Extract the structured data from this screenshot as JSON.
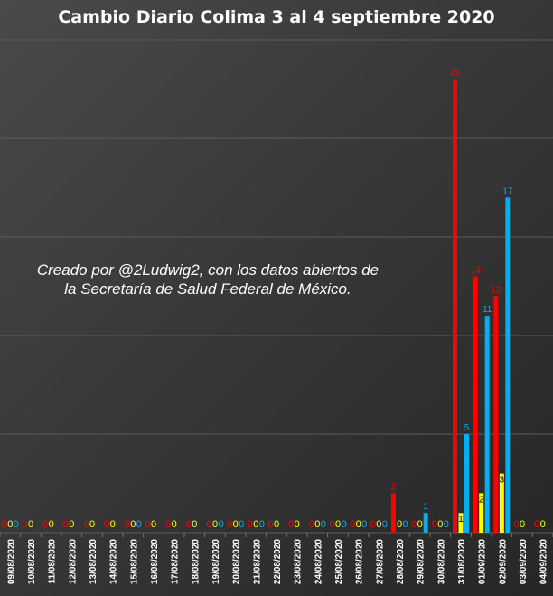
{
  "chart_data": {
    "type": "bar",
    "title": "Cambio Diario Colima 3 al 4 septiembre 2020",
    "annotation": "Creado por @2Ludwig2, con los datos abiertos de la Secretaría de Salud Federal de México.",
    "categories": [
      "09/08/2020",
      "10/08/2020",
      "11/08/2020",
      "12/08/2020",
      "13/08/2020",
      "14/08/2020",
      "15/08/2020",
      "16/08/2020",
      "17/08/2020",
      "18/08/2020",
      "19/08/2020",
      "20/08/2020",
      "21/08/2020",
      "22/08/2020",
      "23/08/2020",
      "24/08/2020",
      "25/08/2020",
      "26/08/2020",
      "27/08/2020",
      "28/08/2020",
      "29/08/2020",
      "30/08/2020",
      "31/08/2020",
      "01/09/2020",
      "02/09/2020",
      "03/09/2020",
      "04/09/2020"
    ],
    "series": [
      {
        "color": "#ff0000",
        "values": [
          0,
          0,
          0,
          0,
          0,
          0,
          0,
          0,
          0,
          0,
          0,
          0,
          0,
          0,
          0,
          0,
          0,
          0,
          0,
          2,
          0,
          0,
          23,
          13,
          12,
          0,
          0
        ]
      },
      {
        "color": "#ffff00",
        "values": [
          0,
          0,
          0,
          0,
          0,
          0,
          0,
          0,
          0,
          0,
          0,
          0,
          0,
          0,
          0,
          0,
          0,
          0,
          0,
          0,
          0,
          0,
          1,
          2,
          3,
          0,
          0
        ]
      },
      {
        "color": "#00b0f0",
        "values": [
          0,
          null,
          null,
          null,
          null,
          null,
          0,
          null,
          null,
          null,
          0,
          0,
          0,
          null,
          null,
          0,
          0,
          0,
          0,
          0,
          1,
          0,
          5,
          11,
          17,
          null,
          null
        ]
      }
    ],
    "ylim": [
      0,
      25
    ],
    "grid": true,
    "legend": "none"
  }
}
